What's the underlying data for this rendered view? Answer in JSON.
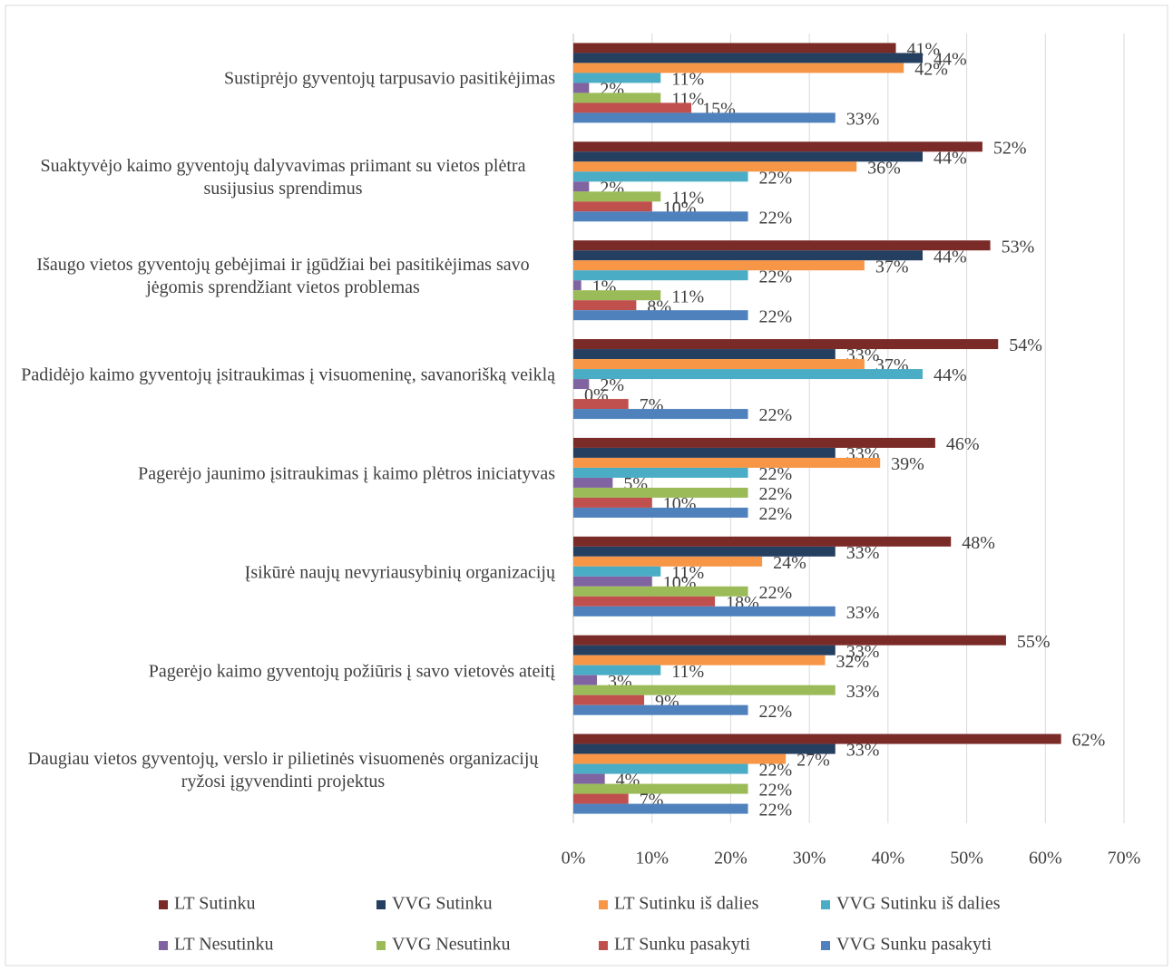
{
  "chart_data": {
    "type": "hbar",
    "categories": [
      "Sustiprėjo gyventojų tarpusavio pasitikėjimas",
      "Suaktyvėjo kaimo gyventojų dalyvavimas priimant su vietos plėtra susijusius sprendimus",
      "Išaugo vietos gyventojų gebėjimai ir įgūdžiai bei pasitikėjimas savo jėgomis sprendžiant vietos problemas",
      "Padidėjo kaimo gyventojų įsitraukimas į visuomeninę, savanorišką veiklą",
      "Pagerėjo jaunimo įsitraukimas į kaimo plėtros iniciatyvas",
      "Įsikūrė naujų nevyriausybinių organizacijų",
      "Pagerėjo kaimo gyventojų požiūris į savo vietovės ateitį",
      "Daugiau vietos gyventojų, verslo ir pilietinės visuomenės organizacijų ryžosi įgyvendinti projektus"
    ],
    "series": [
      {
        "name": "LT Sutinku",
        "color": "#7a2a27",
        "values": [
          41,
          52,
          53,
          54,
          46,
          48,
          55,
          62
        ],
        "value_labels": [
          "41%",
          "52%",
          "53%",
          "54%",
          "46%",
          "48%",
          "55%",
          "62%"
        ]
      },
      {
        "name": "VVG Sutinku",
        "color": "#253f61",
        "values": [
          44.4,
          44.4,
          44.4,
          33.3,
          33.3,
          33.3,
          33.3,
          33.3
        ],
        "value_labels": [
          "44%",
          "44%",
          "44%",
          "33%",
          "33%",
          "33%",
          "33%",
          "33%"
        ]
      },
      {
        "name": "LT Sutinku iš dalies",
        "color": "#f79646",
        "values": [
          42,
          36,
          37,
          37,
          39,
          24,
          32,
          27
        ],
        "value_labels": [
          "42%",
          "36%",
          "37%",
          "37%",
          "39%",
          "24%",
          "32%",
          "27%"
        ]
      },
      {
        "name": "VVG Sutinku iš dalies",
        "color": "#4bacc6",
        "values": [
          11.1,
          22.2,
          22.2,
          44.4,
          22.2,
          11.1,
          11.1,
          22.2
        ],
        "value_labels": [
          "11%",
          "22%",
          "22%",
          "44%",
          "22%",
          "11%",
          "11%",
          "22%"
        ]
      },
      {
        "name": "LT Nesutinku",
        "color": "#8064a2",
        "values": [
          2,
          2,
          1,
          2,
          5,
          10,
          3,
          4
        ],
        "value_labels": [
          "2%",
          "2%",
          "1%",
          "2%",
          "5%",
          "10%",
          "3%",
          "4%"
        ]
      },
      {
        "name": "VVG Nesutinku",
        "color": "#9bbb59",
        "values": [
          11.1,
          11.1,
          11.1,
          0,
          22.2,
          22.2,
          33.3,
          22.2
        ],
        "value_labels": [
          "11%",
          "11%",
          "11%",
          "0%",
          "22%",
          "22%",
          "33%",
          "22%"
        ]
      },
      {
        "name": "LT Sunku pasakyti",
        "color": "#c0504d",
        "values": [
          15,
          10,
          8,
          7,
          10,
          18,
          9,
          7
        ],
        "value_labels": [
          "15%",
          "10%",
          "8%",
          "7%",
          "10%",
          "18%",
          "9%",
          "7%"
        ]
      },
      {
        "name": "VVG Sunku pasakyti",
        "color": "#4f81bd",
        "values": [
          33.3,
          22.2,
          22.2,
          22.2,
          22.2,
          33.3,
          22.2,
          22.2
        ],
        "value_labels": [
          "33%",
          "22%",
          "22%",
          "22%",
          "22%",
          "33%",
          "22%",
          "22%"
        ]
      }
    ],
    "xlim": [
      0,
      70
    ],
    "xticks": [
      {
        "value": 0,
        "label": "0%"
      },
      {
        "value": 10,
        "label": "10%"
      },
      {
        "value": 20,
        "label": "20%"
      },
      {
        "value": 30,
        "label": "30%"
      },
      {
        "value": 40,
        "label": "40%"
      },
      {
        "value": 50,
        "label": "50%"
      },
      {
        "value": 60,
        "label": "60%"
      },
      {
        "value": 70,
        "label": "70%"
      }
    ],
    "grid": true,
    "legend": "bottom"
  }
}
